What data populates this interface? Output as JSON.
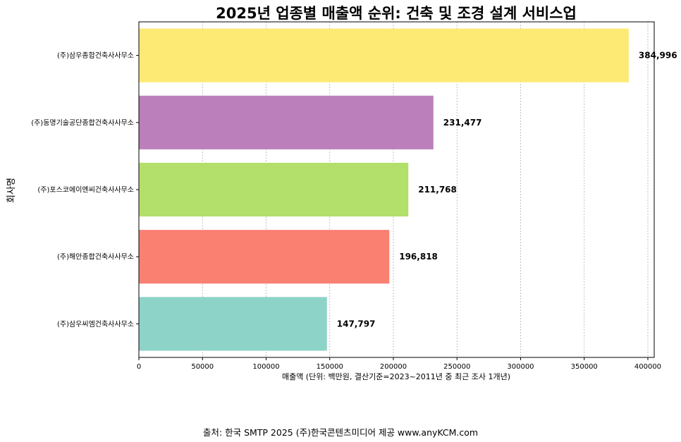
{
  "chart_data": {
    "type": "bar",
    "orientation": "horizontal",
    "title": "2025년 업종별 매출액 순위: 건축 및 조경 설계 서비스업",
    "xlabel": "매출액 (단위: 백만원, 결산기준=2023~2011년 중 최근 조사 1개년)",
    "ylabel": "회사명",
    "categories": [
      "(주)삼우종합건축사사무소",
      "(주)동명기술공단종합건축사사무소",
      "(주)포스코에이엔씨건축사사무소",
      "(주)해안종합건축사사무소",
      "(주)삼우씨엠건축사사무소"
    ],
    "values": [
      384996,
      231477,
      211768,
      196818,
      147797
    ],
    "value_labels": [
      "384,996",
      "231,477",
      "211,768",
      "196,818",
      "147,797"
    ],
    "colors": [
      "#fdea74",
      "#bb80bb",
      "#b3df6b",
      "#fa8072",
      "#8ed3c8"
    ],
    "xlim": [
      0,
      405000
    ],
    "xticks": [
      0,
      50000,
      100000,
      150000,
      200000,
      250000,
      300000,
      350000,
      400000
    ],
    "xtick_labels": [
      "0",
      "50000",
      "100000",
      "150000",
      "200000",
      "250000",
      "300000",
      "350000",
      "400000"
    ],
    "grid": "x-dashed"
  },
  "source": "출처: 한국 SMTP 2025  (주)한국콘텐츠미디어 제공  www.anyKCM.com"
}
